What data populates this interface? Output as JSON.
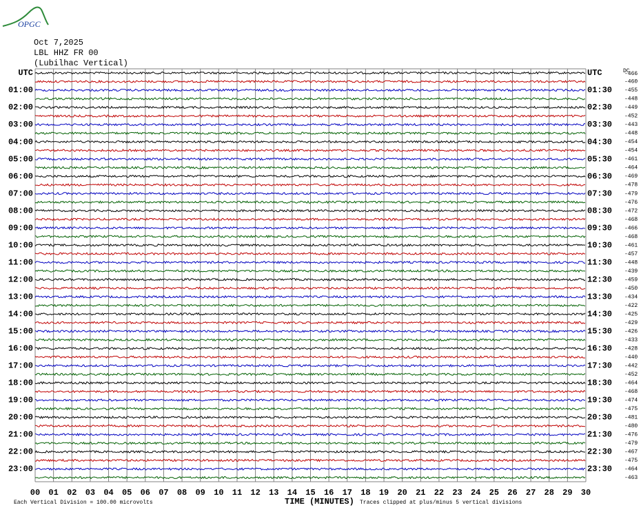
{
  "logo": "OPGC",
  "header": {
    "date": "Oct 7,2025",
    "station": "LBL HHZ FR 00",
    "location": "(Lubilhac Vertical)"
  },
  "chart_data": {
    "type": "helicorder",
    "x_label": "TIME (MINUTES)",
    "xlim": [
      0,
      30
    ],
    "xticks": [
      {
        "value": 0,
        "label": "00"
      },
      {
        "value": 1,
        "label": "01"
      },
      {
        "value": 2,
        "label": "02"
      },
      {
        "value": 3,
        "label": "03"
      },
      {
        "value": 4,
        "label": "04"
      },
      {
        "value": 5,
        "label": "05"
      },
      {
        "value": 6,
        "label": "06"
      },
      {
        "value": 7,
        "label": "07"
      },
      {
        "value": 8,
        "label": "08"
      },
      {
        "value": 9,
        "label": "09"
      },
      10,
      11,
      12,
      13,
      14,
      15,
      16,
      17,
      18,
      19,
      20,
      21,
      22,
      23,
      24,
      25,
      26,
      27,
      28,
      29,
      30
    ],
    "grid": true,
    "left_labels": [
      "UTC",
      null,
      "01:00",
      null,
      "02:00",
      null,
      "03:00",
      null,
      "04:00",
      null,
      "05:00",
      null,
      "06:00",
      null,
      "07:00",
      null,
      "08:00",
      null,
      "09:00",
      null,
      "10:00",
      null,
      "11:00",
      null,
      "12:00",
      null,
      "13:00",
      null,
      "14:00",
      null,
      "15:00",
      null,
      "16:00",
      null,
      "17:00",
      null,
      "18:00",
      null,
      "19:00",
      null,
      "20:00",
      null,
      "21:00",
      null,
      "22:00",
      null,
      "23:00",
      null
    ],
    "right_labels": [
      "UTC",
      null,
      "01:30",
      null,
      "02:30",
      null,
      "03:30",
      null,
      "04:30",
      null,
      "05:30",
      null,
      "06:30",
      null,
      "07:30",
      null,
      "08:30",
      null,
      "09:30",
      null,
      "10:30",
      null,
      "11:30",
      null,
      "12:30",
      null,
      "13:30",
      null,
      "14:30",
      null,
      "15:30",
      null,
      "16:30",
      null,
      "17:30",
      null,
      "18:30",
      null,
      "19:30",
      null,
      "20:30",
      null,
      "21:30",
      null,
      "22:30",
      null,
      "23:30",
      null
    ],
    "dc_header": "DC",
    "dc_offsets": [
      -466,
      -460,
      -455,
      -448,
      -449,
      -452,
      -443,
      -448,
      -454,
      -454,
      -461,
      -464,
      -469,
      -478,
      -479,
      -476,
      -472,
      -468,
      -466,
      -468,
      -461,
      -457,
      -448,
      -439,
      -459,
      -450,
      -434,
      -422,
      -425,
      -429,
      -426,
      -433,
      -428,
      -440,
      -442,
      -452,
      -464,
      -468,
      -474,
      -475,
      -481,
      -480,
      -476,
      -479,
      -467,
      -475,
      -464,
      -463
    ],
    "trace_colors": [
      "#000000",
      "#c00000",
      "#0000c0",
      "#006000"
    ],
    "notes": [
      "Each Vertical Division =  100.00 microvolts",
      "Traces clipped at plus/minus 5 vertical divisions"
    ]
  }
}
